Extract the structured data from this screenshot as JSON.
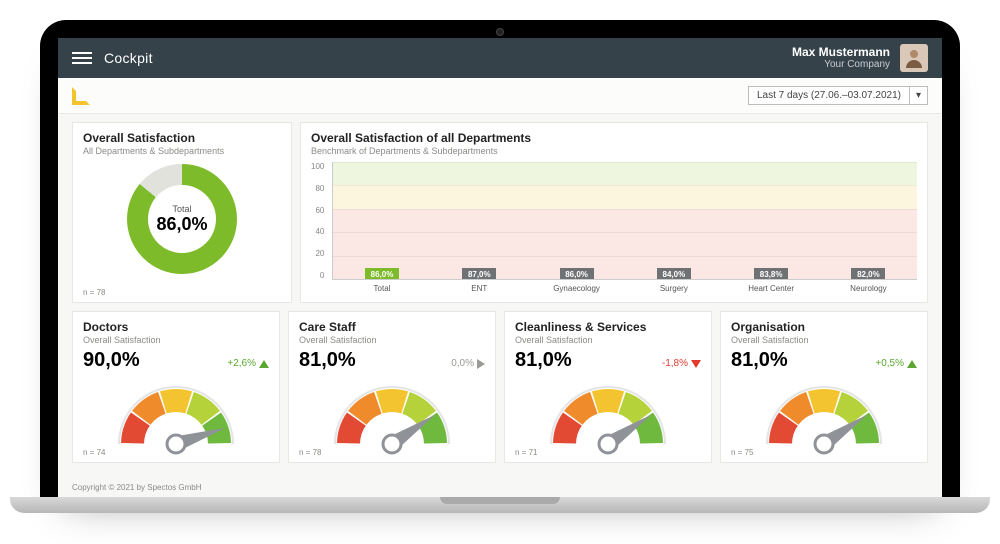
{
  "header": {
    "title": "Cockpit",
    "user_name": "Max Mustermann",
    "user_company": "Your Company"
  },
  "date_range": {
    "label": "Last 7 days (27.06.–03.07.2021)"
  },
  "colors": {
    "topbar_bg": "#35424a",
    "accent_yellow": "#f4c430",
    "donut_fill": "#7dbb2a",
    "donut_empty": "#e2e2dd",
    "bar_highlight": "#7dbb2a",
    "bar_default": "#6f7274",
    "band_green": "#eef6df",
    "band_yellow": "#fdf6df",
    "band_red": "#fbe7e3",
    "trend_up": "#5aa82f",
    "trend_down": "#e23b2e",
    "trend_flat": "#9a9a96",
    "gauge_red": "#e24a33",
    "gauge_orange": "#f08b2c",
    "gauge_yellow": "#f4c430",
    "gauge_lime": "#b6d23a",
    "gauge_green": "#6fb93e",
    "gauge_stroke": "#8f9397"
  },
  "overall": {
    "title": "Overall Satisfaction",
    "subtitle": "All Departments & Subdepartments",
    "center_label": "Total",
    "value_text": "86,0%",
    "value_pct": 86.0,
    "footnote": "n = 78"
  },
  "departments_chart": {
    "title": "Overall Satisfaction of all Departments",
    "subtitle": "Benchmark of Departments & Subdepartments",
    "type": "bar",
    "ylim": [
      0,
      100
    ],
    "ytick_step": 20,
    "yticks": [
      "100",
      "80",
      "60",
      "40",
      "20",
      "0"
    ],
    "bands": [
      {
        "from": 80,
        "to": 100,
        "color": "#eef6df"
      },
      {
        "from": 60,
        "to": 80,
        "color": "#fdf6df"
      },
      {
        "from": 0,
        "to": 60,
        "color": "#fbe7e3"
      }
    ],
    "bars": [
      {
        "label": "Total",
        "value": 86.0,
        "text": "86,0%",
        "color": "#7dbb2a"
      },
      {
        "label": "ENT",
        "value": 87.0,
        "text": "87,0%",
        "color": "#6f7274"
      },
      {
        "label": "Gynaecology",
        "value": 86.0,
        "text": "86,0%",
        "color": "#6f7274"
      },
      {
        "label": "Surgery",
        "value": 84.0,
        "text": "84,0%",
        "color": "#6f7274"
      },
      {
        "label": "Heart Center",
        "value": 83.8,
        "text": "83,8%",
        "color": "#6f7274"
      },
      {
        "label": "Neurology",
        "value": 82.0,
        "text": "82,0%",
        "color": "#6f7274"
      }
    ]
  },
  "gauges": [
    {
      "title": "Doctors",
      "subtitle": "Overall Satisfaction",
      "value_text": "90,0%",
      "value_pct": 90.0,
      "delta_text": "+2,6%",
      "trend": "up",
      "footnote": "n = 74"
    },
    {
      "title": "Care Staff",
      "subtitle": "Overall Satisfaction",
      "value_text": "81,0%",
      "value_pct": 81.0,
      "delta_text": "0,0%",
      "trend": "flat",
      "footnote": "n = 78"
    },
    {
      "title": "Cleanliness & Services",
      "subtitle": "Overall Satisfaction",
      "value_text": "81,0%",
      "value_pct": 81.0,
      "delta_text": "-1,8%",
      "trend": "down",
      "footnote": "n = 71"
    },
    {
      "title": "Organisation",
      "subtitle": "Overall Satisfaction",
      "value_text": "81,0%",
      "value_pct": 81.0,
      "delta_text": "+0,5%",
      "trend": "up",
      "footnote": "n = 75"
    }
  ],
  "gauge_style": {
    "segments": 5,
    "segment_colors": [
      "#e24a33",
      "#f08b2c",
      "#f4c430",
      "#b6d23a",
      "#6fb93e"
    ],
    "needle_color": "#8f9397",
    "outline_color": "#8f9397"
  },
  "footer": {
    "copyright": "Copyright © 2021 by Spectos GmbH"
  }
}
